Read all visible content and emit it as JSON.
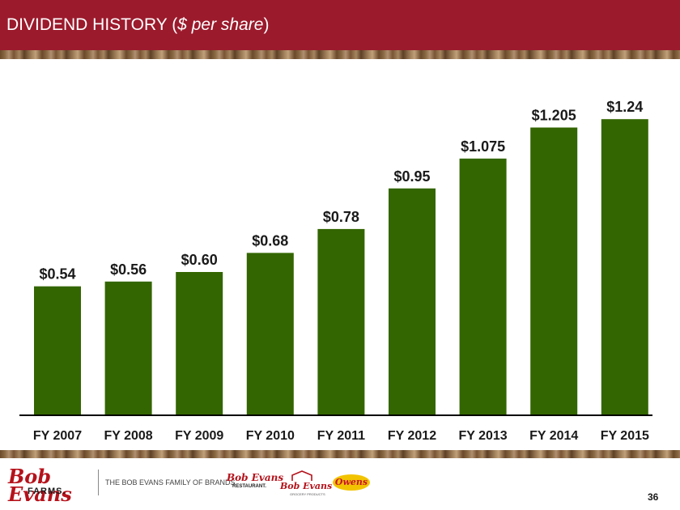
{
  "header": {
    "title_main": "DIVIDEND HISTORY",
    "title_open": " (",
    "title_italic": "$ per share",
    "title_close": ")"
  },
  "colors": {
    "header_bg": "#9b1a2c",
    "bar": "#336600",
    "brand_red": "#b5121b",
    "owens_yellow": "#f2c300"
  },
  "chart_data": {
    "type": "bar",
    "title": "DIVIDEND HISTORY ($ per share)",
    "xlabel": "",
    "ylabel": "",
    "ylim": [
      0,
      1.4
    ],
    "grid": false,
    "categories": [
      "FY 2007",
      "FY 2008",
      "FY 2009",
      "FY 2010",
      "FY 2011",
      "FY 2012",
      "FY 2013",
      "FY 2014",
      "FY 2015"
    ],
    "values": [
      0.54,
      0.56,
      0.6,
      0.68,
      0.78,
      0.95,
      1.075,
      1.205,
      1.24
    ],
    "data_labels": [
      "$0.54",
      "$0.56",
      "$0.60",
      "$0.68",
      "$0.78",
      "$0.95",
      "$1.075",
      "$1.205",
      "$1.24"
    ]
  },
  "footer": {
    "logo_name": "Bob Evans",
    "logo_sub": "FARMS.",
    "family_text": "THE BOB EVANS FAMILY OF BRANDS",
    "brand_restaurant": "Bob Evans",
    "brand_restaurant_sub": "RESTAURANT.",
    "brand_sausage": "Bob Evans",
    "brand_sausage_sub": "GROCERY PRODUCTS",
    "brand_owens": "Owens",
    "page_number": "36"
  }
}
